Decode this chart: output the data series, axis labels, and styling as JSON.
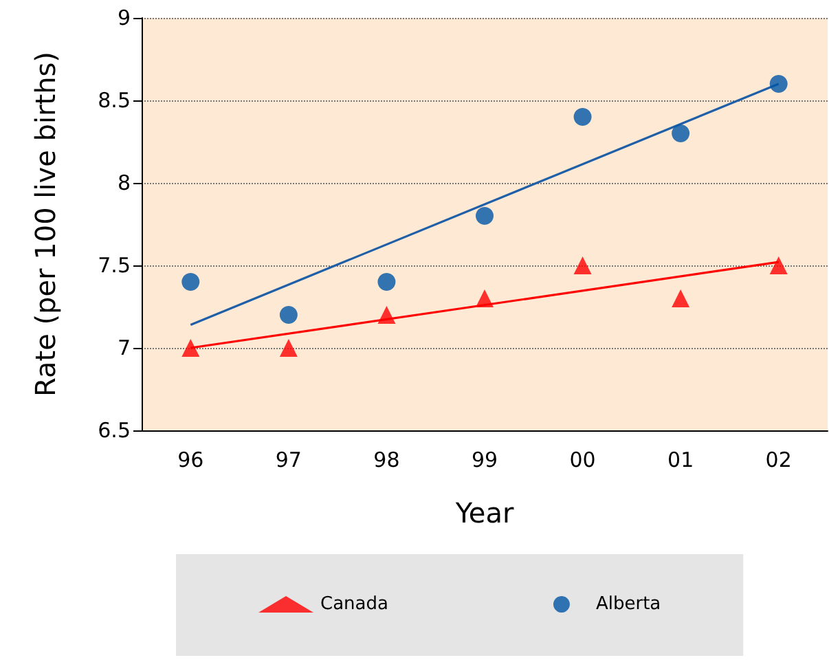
{
  "chart_data": {
    "type": "scatter",
    "xlabel": "Year",
    "ylabel": "Rate (per 100 live births)",
    "categories": [
      "96",
      "97",
      "98",
      "99",
      "00",
      "01",
      "02"
    ],
    "series": [
      {
        "name": "Canada",
        "color": "#ff0000",
        "marker": "triangle",
        "values": [
          7.0,
          7.0,
          7.2,
          7.3,
          7.5,
          7.3,
          7.5
        ]
      },
      {
        "name": "Alberta",
        "color": "#0055a5",
        "marker": "circle",
        "values": [
          7.4,
          7.2,
          7.4,
          7.8,
          8.4,
          8.3,
          8.6
        ]
      },
      {
        "type": "line",
        "color": "#ff0000",
        "x": [
          "96",
          "02"
        ],
        "values": [
          7.0,
          7.52
        ]
      },
      {
        "type": "line",
        "color": "#1f5fa8",
        "x": [
          "96",
          "02"
        ],
        "values": [
          7.14,
          8.6
        ]
      }
    ],
    "ylim": [
      6.5,
      9
    ],
    "yticks": [
      6.5,
      7,
      7.5,
      8,
      8.5,
      9
    ],
    "grid": "y",
    "legend": "bottom"
  }
}
